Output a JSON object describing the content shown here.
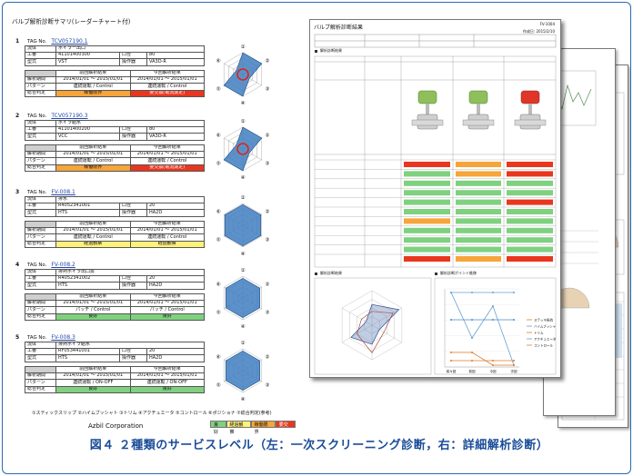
{
  "left_panel": {
    "title": "バルブ解析診断サマリ(レーダーチャート付)",
    "radar_axes": [
      "①",
      "②",
      "③",
      "④",
      "⑤",
      "⑥"
    ],
    "units": [
      {
        "no": "1",
        "tag_label": "TAG No.",
        "tag": "TCV057190.1",
        "fluid_label": "流体",
        "fluid": "ボイラー出口",
        "serial_label": "工番",
        "serial": "41101400300",
        "bore_label": "口径",
        "bore": "80",
        "model_label": "型式",
        "model": "VST",
        "actuator_label": "操作器",
        "actuator": "VA3D-R",
        "h1": "解析期間",
        "h2": "前回解析結果",
        "h3": "今回解析結果",
        "period1": "2014/01/01 ～ 2015/01/01",
        "period2": "2014/01/01 ～ 2015/01/01",
        "pattern_label": "パターン",
        "pattern1": "連続運転 / Control",
        "pattern2": "連続運転 / Control",
        "judge_label": "総合判定",
        "judge1": "稼働限界",
        "judge2": "要交換(電流測定)"
      },
      {
        "no": "2",
        "tag_label": "TAG No.",
        "tag": "TCV057190.3",
        "fluid_label": "流体",
        "fluid": "ボイラ給水",
        "serial_label": "工番",
        "serial": "41101400200",
        "bore_label": "口径",
        "bore": "80",
        "model_label": "型式",
        "model": "VCC",
        "actuator_label": "操作器",
        "actuator": "VA3D-R",
        "h1": "解析期間",
        "h2": "前回解析結果",
        "h3": "今回解析結果",
        "period1": "2014/01/01 ～ 2015/01/01",
        "period2": "2014/01/01 ～ 2015/01/01",
        "pattern_label": "パターン",
        "pattern1": "連続運転 / Control",
        "pattern2": "連続運転 / Control",
        "judge_label": "総合判定",
        "judge1": "稼働限界",
        "judge2": "要交換(電流測定)"
      },
      {
        "no": "3",
        "tag_label": "TAG No.",
        "tag": "FV-008.1",
        "fluid_label": "流体",
        "fluid": "排水",
        "serial_label": "工番",
        "serial": "R4052341001",
        "bore_label": "口径",
        "bore": "20",
        "model_label": "型式",
        "model": "HTS",
        "actuator_label": "操作器",
        "actuator": "HA2D",
        "h1": "解析期間",
        "h2": "前回解析結果",
        "h3": "今回解析結果",
        "period1": "2014/01/01 ～ 2015/01/01",
        "period2": "2014/01/01 ～ 2015/01/01",
        "pattern_label": "パターン",
        "pattern1": "連続運転 / Control",
        "pattern2": "連続運転 / Control",
        "judge_label": "総合判定",
        "judge1": "経過観察",
        "judge2": "経過観察"
      },
      {
        "no": "4",
        "tag_label": "TAG No.",
        "tag": "FV-008.2",
        "fluid_label": "流体",
        "fluid": "排熱ボイラ出口蒸",
        "serial_label": "工番",
        "serial": "R4052341002",
        "bore_label": "口径",
        "bore": "20",
        "model_label": "型式",
        "model": "HTS",
        "actuator_label": "操作器",
        "actuator": "HA2D",
        "h1": "解析期間",
        "h2": "前回解析結果",
        "h3": "今回解析結果",
        "period1": "2014/01/01 ～ 2015/01/01",
        "period2": "2014/01/01 ～ 2015/01/01",
        "pattern_label": "パターン",
        "pattern1": "パッチ / Control",
        "pattern2": "パッチ / Control",
        "judge_label": "総合判定",
        "judge1": "良好",
        "judge2": "良好"
      },
      {
        "no": "5",
        "tag_label": "TAG No.",
        "tag": "FV-008.3",
        "fluid_label": "流体",
        "fluid": "排熱ボイラ給水",
        "serial_label": "工番",
        "serial": "RF053441001",
        "bore_label": "口径",
        "bore": "20",
        "model_label": "型式",
        "model": "HTS",
        "actuator_label": "操作器",
        "actuator": "HA2D",
        "h1": "解析期間",
        "h2": "前回解析結果",
        "h3": "今回解析結果",
        "period1": "2014/01/01 ～ 2015/01/01",
        "period2": "2014/01/01 ～ 2015/01/01",
        "pattern_label": "パターン",
        "pattern1": "連続運転 / ON-OFF",
        "pattern2": "連続運転 / ON-OFF",
        "judge_label": "総合判定",
        "judge1": "良好",
        "judge2": "良好"
      }
    ],
    "legend": {
      "items_line": "①スティックスリップ ②ハイムブッシャト ③トリム ④アクチュエータ ⑤コントロール ⑥ポジショナ ⑦総合判定(参考)",
      "company": "Azbil Corporation",
      "levels": [
        "良好",
        "経過観察",
        "稼働限界",
        "要交換"
      ]
    }
  },
  "right_panel": {
    "title": "バルブ解析診断結果",
    "page_no": "FV-1004",
    "date": "作成日: 2015/2/10",
    "section_result": "解析診断結果",
    "section_radar": "解析診断結果",
    "section_points": "解析診断ポイント推移",
    "status_cells": [
      "測定なし",
      "前回比",
      "良好",
      "稼働限界",
      "要交換"
    ],
    "line_legend": [
      "ステッキ抵抗",
      "ハイムプッシャ",
      "トリム",
      "アクチュエータ",
      "コントロール"
    ],
    "points_x": [
      "前々回",
      "前回",
      "今回",
      "次回"
    ]
  },
  "caption": "図４ ２種類のサービスレベル（左：一次スクリーニング診断，右：詳細解析診断）"
}
